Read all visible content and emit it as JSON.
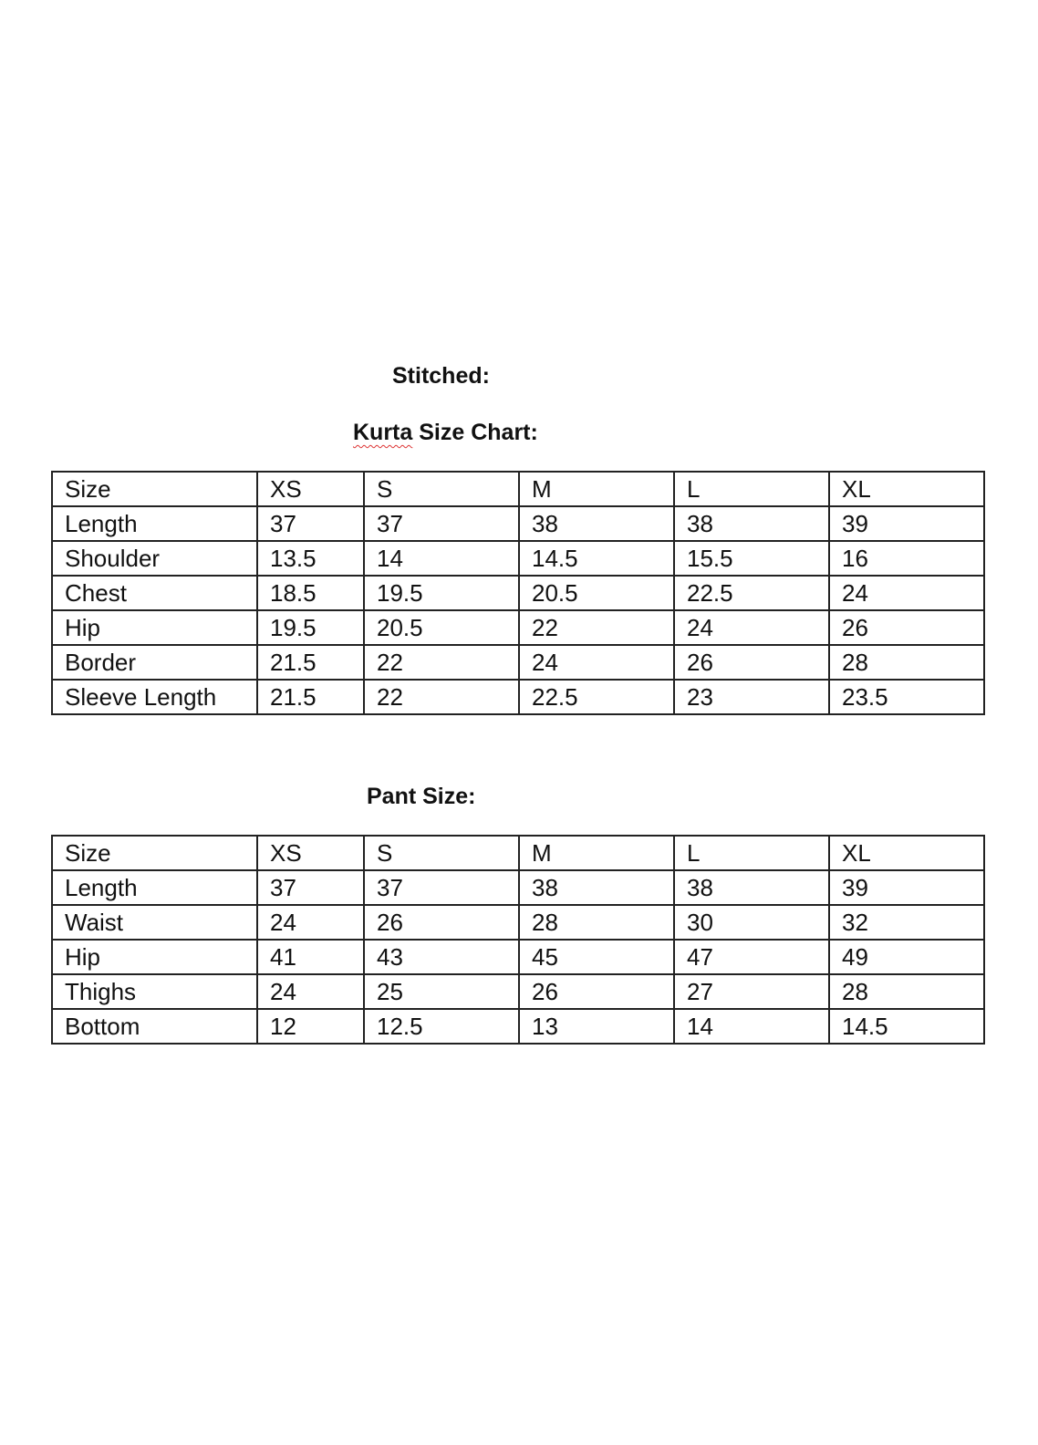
{
  "headings": {
    "stitched": "Stitched:",
    "kurta_title_word": "Kurta",
    "kurta_title_rest": " Size Chart:",
    "pant_title": "Pant Size:"
  },
  "kurta_table": {
    "rows": [
      [
        "Size",
        "XS",
        "S",
        "M",
        "L",
        "XL"
      ],
      [
        "Length",
        "37",
        "37",
        "38",
        "38",
        "39"
      ],
      [
        "Shoulder",
        "13.5",
        "14",
        "14.5",
        "15.5",
        "16"
      ],
      [
        "Chest",
        "18.5",
        "19.5",
        "20.5",
        "22.5",
        "24"
      ],
      [
        "Hip",
        "19.5",
        "20.5",
        "22",
        "24",
        "26"
      ],
      [
        "Border",
        "21.5",
        "22",
        "24",
        "26",
        "28"
      ],
      [
        "Sleeve Length",
        "21.5",
        "22",
        "22.5",
        "23",
        "23.5"
      ]
    ]
  },
  "pant_table": {
    "rows": [
      [
        "Size",
        "XS",
        "S",
        "M",
        "L",
        "XL"
      ],
      [
        "Length",
        "37",
        "37",
        "38",
        "38",
        "39"
      ],
      [
        "Waist",
        "24",
        "26",
        "28",
        "30",
        "32"
      ],
      [
        "Hip",
        "41",
        "43",
        "45",
        "47",
        "49"
      ],
      [
        "Thighs",
        "24",
        "25",
        "26",
        "27",
        "28"
      ],
      [
        "Bottom",
        "12",
        "12.5",
        "13",
        "14",
        "14.5"
      ]
    ]
  }
}
